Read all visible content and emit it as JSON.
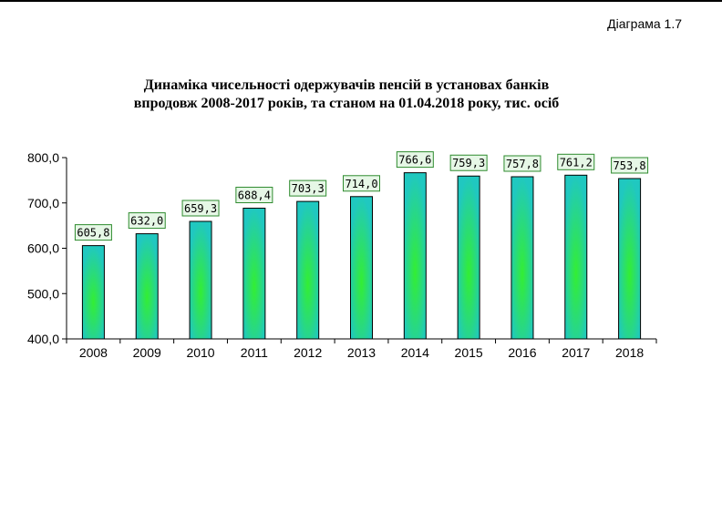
{
  "diagram_label": "Діаграма 1.7",
  "chart_data": {
    "type": "bar",
    "title": [
      "Динаміка чисельності одержувачів пенсій в установах банків",
      "впродовж 2008-2017 років, та станом на 01.04.2018 року, тис. осіб"
    ],
    "xlabel": "",
    "ylabel": "",
    "categories": [
      "2008",
      "2009",
      "2010",
      "2011",
      "2012",
      "2013",
      "2014",
      "2015",
      "2016",
      "2017",
      "2018"
    ],
    "values": [
      605.8,
      632.0,
      659.3,
      688.4,
      703.3,
      714.0,
      766.6,
      759.3,
      757.8,
      761.2,
      753.8
    ],
    "data_labels": [
      "605,8",
      "632,0",
      "659,3",
      "688,4",
      "703,3",
      "714,0",
      "766,6",
      "759,3",
      "757,8",
      "761,2",
      "753,8"
    ],
    "ylim": [
      400,
      800
    ],
    "yticks": [
      400,
      500,
      600,
      700,
      800
    ],
    "ytick_labels": [
      "400,0",
      "500,0",
      "600,0",
      "700,0",
      "800,0"
    ],
    "grid": false,
    "legend": "none",
    "colors": {
      "bar_edge": "#20c8c0",
      "bar_center": "#33ee33",
      "label_fill": "#e6f7e6",
      "label_border": "#2e8b2e"
    }
  }
}
